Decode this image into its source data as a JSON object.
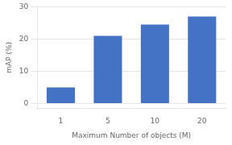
{
  "chart_data": {
    "type": "bar",
    "categories": [
      "1",
      "5",
      "10",
      "20"
    ],
    "values": [
      5.0,
      21.0,
      24.5,
      27.0
    ],
    "color": "#4472C4",
    "xlabel": "Maximum Number of objects (M)",
    "ylabel": "mAP (%)",
    "ylim": [
      -1.5,
      30
    ],
    "yticks": [
      0,
      10,
      20,
      30
    ],
    "grid": true
  }
}
